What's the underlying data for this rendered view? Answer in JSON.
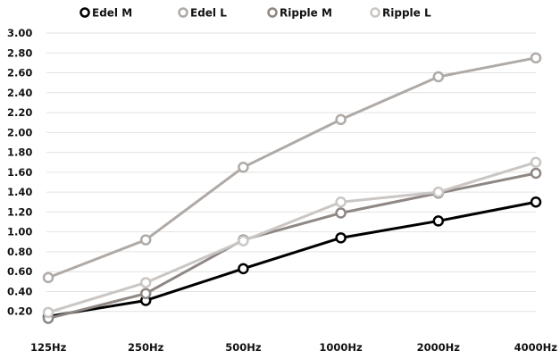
{
  "chart_data": {
    "type": "line",
    "categories": [
      "125Hz",
      "250Hz",
      "500Hz",
      "1000Hz",
      "2000Hz",
      "4000Hz"
    ],
    "series": [
      {
        "name": "Edel M",
        "color": "#000000",
        "values": [
          0.15,
          0.31,
          0.63,
          0.94,
          1.11,
          1.3
        ]
      },
      {
        "name": "Edel L",
        "color": "#b0aaa6",
        "values": [
          0.54,
          0.92,
          1.65,
          2.13,
          2.56,
          2.75
        ]
      },
      {
        "name": "Ripple M",
        "color": "#8f8783",
        "values": [
          0.13,
          0.38,
          0.92,
          1.19,
          1.39,
          1.59
        ]
      },
      {
        "name": "Ripple L",
        "color": "#cac6c3",
        "values": [
          0.19,
          0.49,
          0.91,
          1.3,
          1.4,
          1.7
        ]
      }
    ],
    "yticks": [
      "0.20",
      "0.40",
      "0.60",
      "0.80",
      "1.00",
      "1.20",
      "1.40",
      "1.60",
      "1.80",
      "2.00",
      "2.20",
      "2.40",
      "2.60",
      "2.80",
      "3.00"
    ],
    "ylim": [
      0,
      3.0
    ],
    "grid": true,
    "legend_position": "top"
  }
}
